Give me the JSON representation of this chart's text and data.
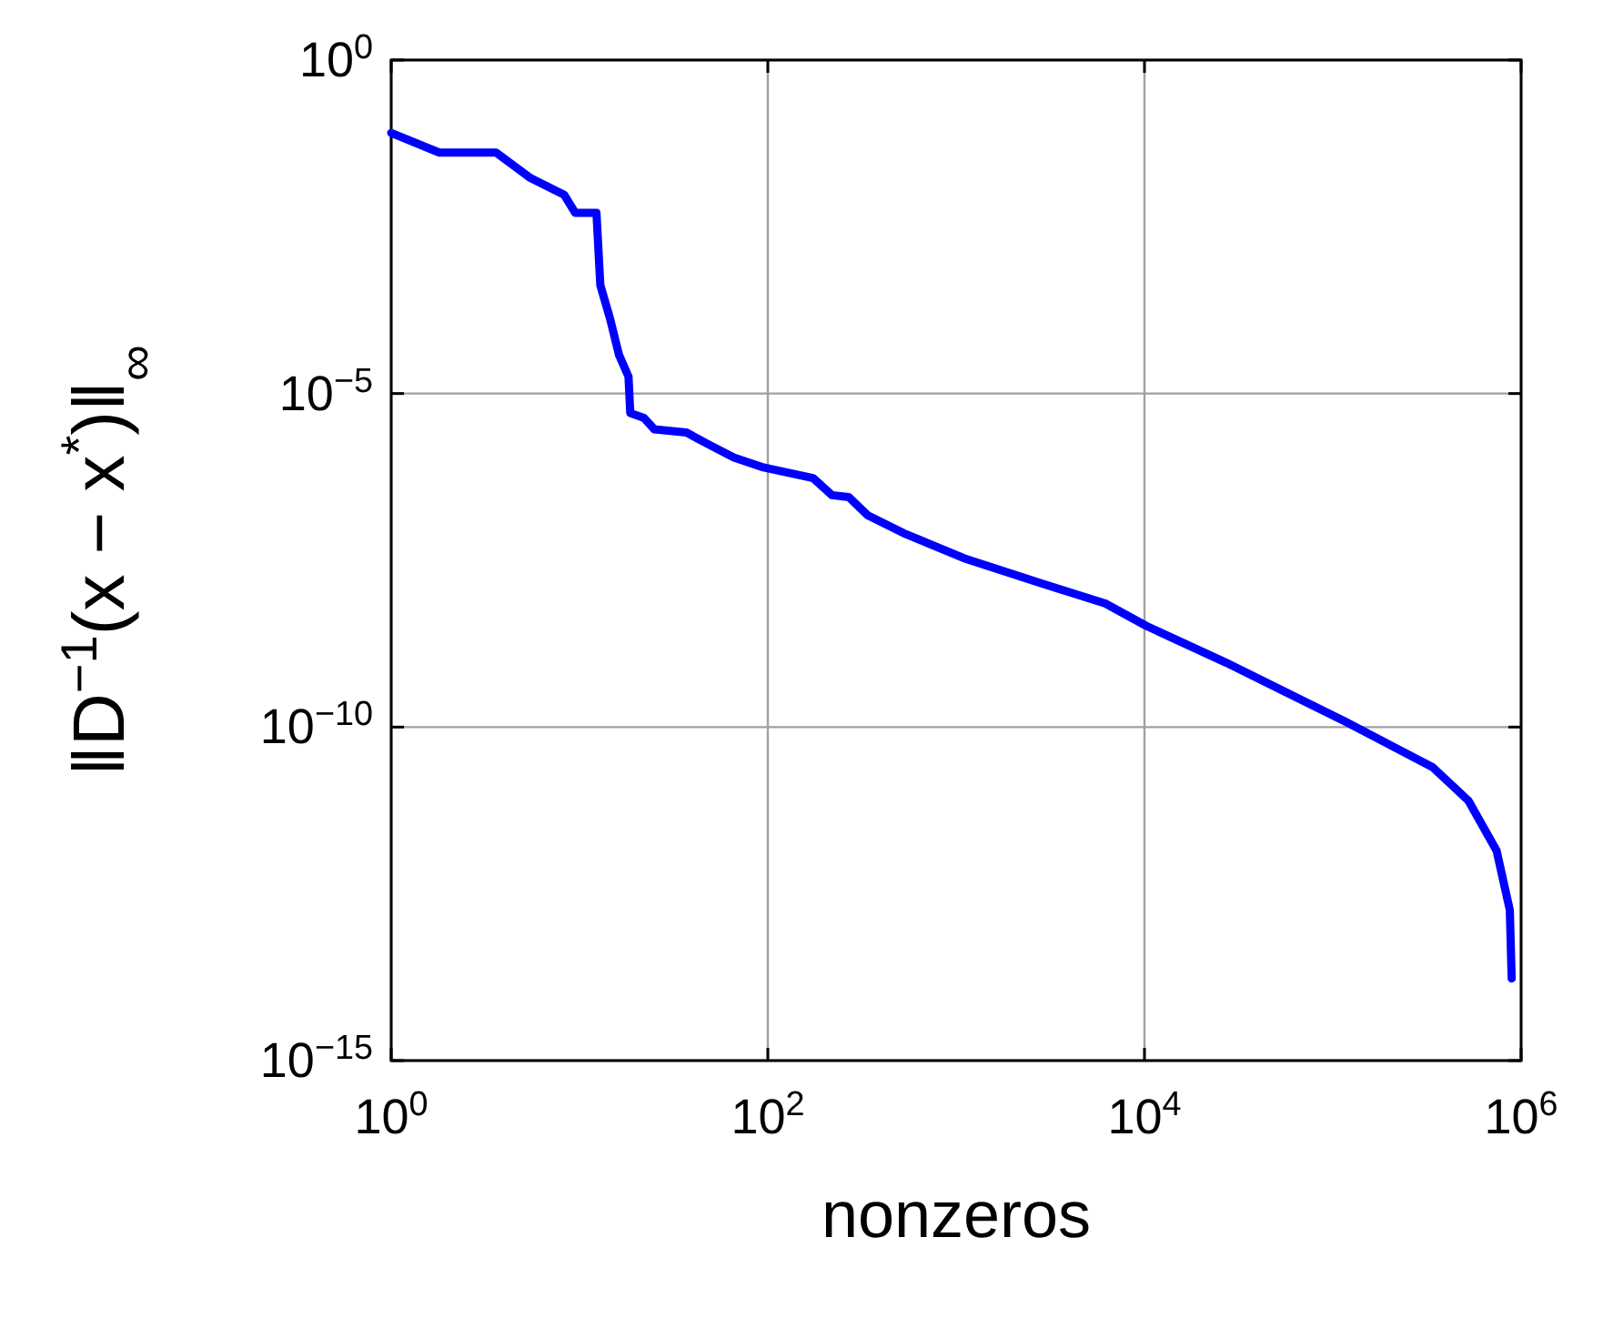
{
  "chart_data": {
    "type": "line",
    "xlabel": "nonzeros",
    "ylabel": "‖D$^{−1}$(x − x$^{*}$)‖$_{∞}$",
    "log": "xy",
    "grid": true,
    "marker": "none",
    "line_style": "solid",
    "xlim": [
      1,
      1000000
    ],
    "ylim": [
      1e-15,
      1
    ],
    "xticks": [
      {
        "value": 1,
        "label": "10$^{0}$"
      },
      {
        "value": 100,
        "label": "10$^{2}$"
      },
      {
        "value": 10000,
        "label": "10$^{4}$"
      },
      {
        "value": 1000000,
        "label": "10$^{6}$"
      }
    ],
    "yticks": [
      {
        "value": 1e-15,
        "label": "10$^{−15}$"
      },
      {
        "value": 1e-10,
        "label": "10$^{−10}$"
      },
      {
        "value": 1e-05,
        "label": "10$^{−5}$"
      },
      {
        "value": 1,
        "label": "10$^{0}$"
      }
    ],
    "series": [
      {
        "color": "#0000ff",
        "x": [
          1,
          1.8,
          3.6,
          5.5,
          8.3,
          9.5,
          12.3,
          12.9,
          14.5,
          16.2,
          18.2,
          18.6,
          22,
          25,
          37,
          49,
          66,
          95,
          174,
          219,
          269,
          339,
          525,
          1100,
          2900,
          6200,
          10200,
          27000,
          117000,
          339000,
          525000,
          741000,
          871000,
          891000
        ],
        "values": [
          0.081,
          0.041,
          0.041,
          0.017,
          0.0095,
          0.0051,
          0.0051,
          0.00042,
          0.000135,
          3.8e-05,
          1.8e-05,
          5.1e-06,
          4.3e-06,
          2.9e-06,
          2.6e-06,
          1.7e-06,
          1.1e-06,
          7.8e-07,
          5.4e-07,
          3e-07,
          2.8e-07,
          1.5e-07,
          8.1e-08,
          3.4e-08,
          1.4e-08,
          7.1e-09,
          3.3e-09,
          9.3e-10,
          1.2e-10,
          2.5e-11,
          7.9e-12,
          1.4e-12,
          1.8e-13,
          1.7e-14
        ]
      }
    ]
  }
}
